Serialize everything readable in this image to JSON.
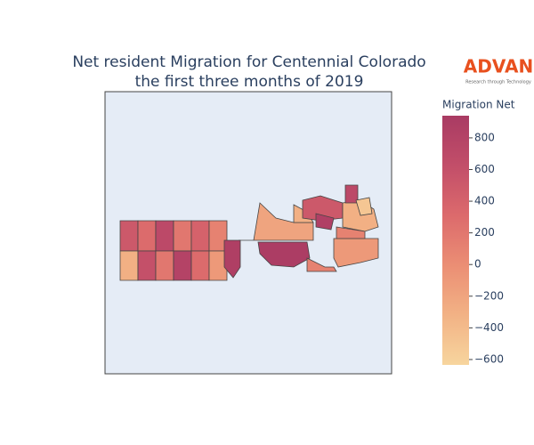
{
  "chart_data": {
    "type": "choropleth",
    "title": "Net resident Migration for Centennial Colorado",
    "subtitle": "the first three months of 2019",
    "colorbar_title": "Migration Net",
    "logo": "ADVAN",
    "logo_tagline": "Research through Technology",
    "clim": [
      -634,
      940
    ],
    "ticks": [
      800,
      600,
      400,
      200,
      0,
      {
        "value": -200,
        "label": "−200"
      },
      {
        "value": -400,
        "label": "−400"
      },
      {
        "value": -600,
        "label": "−600"
      }
    ],
    "colorscale": [
      "#f7d59e",
      "#f2b285",
      "#eb8e74",
      "#dc6a6c",
      "#c24e69",
      "#a93b63"
    ],
    "values": [
      500,
      300,
      700,
      200,
      400,
      100,
      -300,
      600,
      200,
      800,
      300,
      -100,
      870,
      -200,
      -300,
      900,
      100,
      -100,
      500,
      -300,
      850,
      700,
      100,
      -500
    ]
  }
}
